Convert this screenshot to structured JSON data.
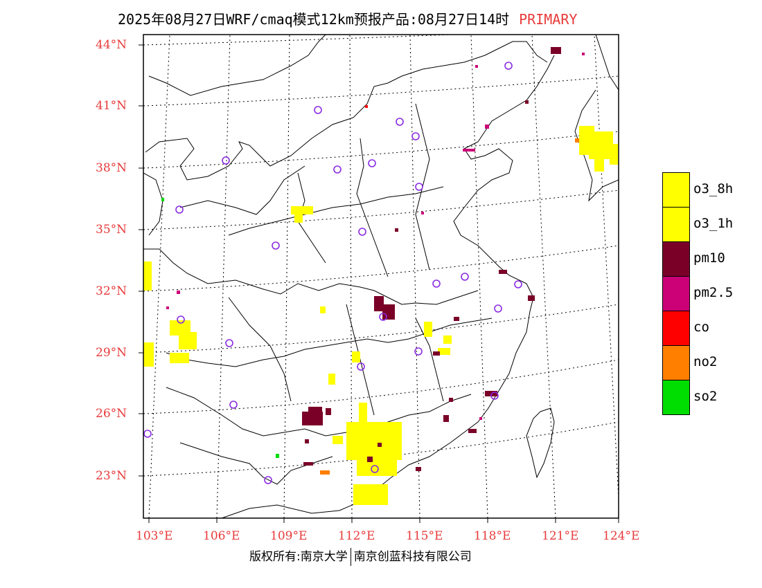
{
  "title": {
    "text": "2025年08月27日WRF/cmaq模式12km预报产品:08月27日14时",
    "tag": "PRIMARY"
  },
  "axes": {
    "lat_labels": [
      "44°N",
      "41°N",
      "38°N",
      "35°N",
      "32°N",
      "29°N",
      "26°N",
      "23°N"
    ],
    "lon_labels": [
      "103°E",
      "106°E",
      "109°E",
      "112°E",
      "115°E",
      "118°E",
      "121°E",
      "124°E"
    ]
  },
  "legend": {
    "items": [
      {
        "label": "o3_8h",
        "color": "#ffff00"
      },
      {
        "label": "o3_1h",
        "color": "#ffff00"
      },
      {
        "label": "pm10",
        "color": "#7a0028"
      },
      {
        "label": "pm2.5",
        "color": "#cc0077"
      },
      {
        "label": "co",
        "color": "#ff0000"
      },
      {
        "label": "no2",
        "color": "#ff7f00"
      },
      {
        "label": "so2",
        "color": "#00dd00"
      }
    ]
  },
  "footer": {
    "left": "版权所有:南京大学",
    "right": "南京创蓝科技有限公司"
  }
}
